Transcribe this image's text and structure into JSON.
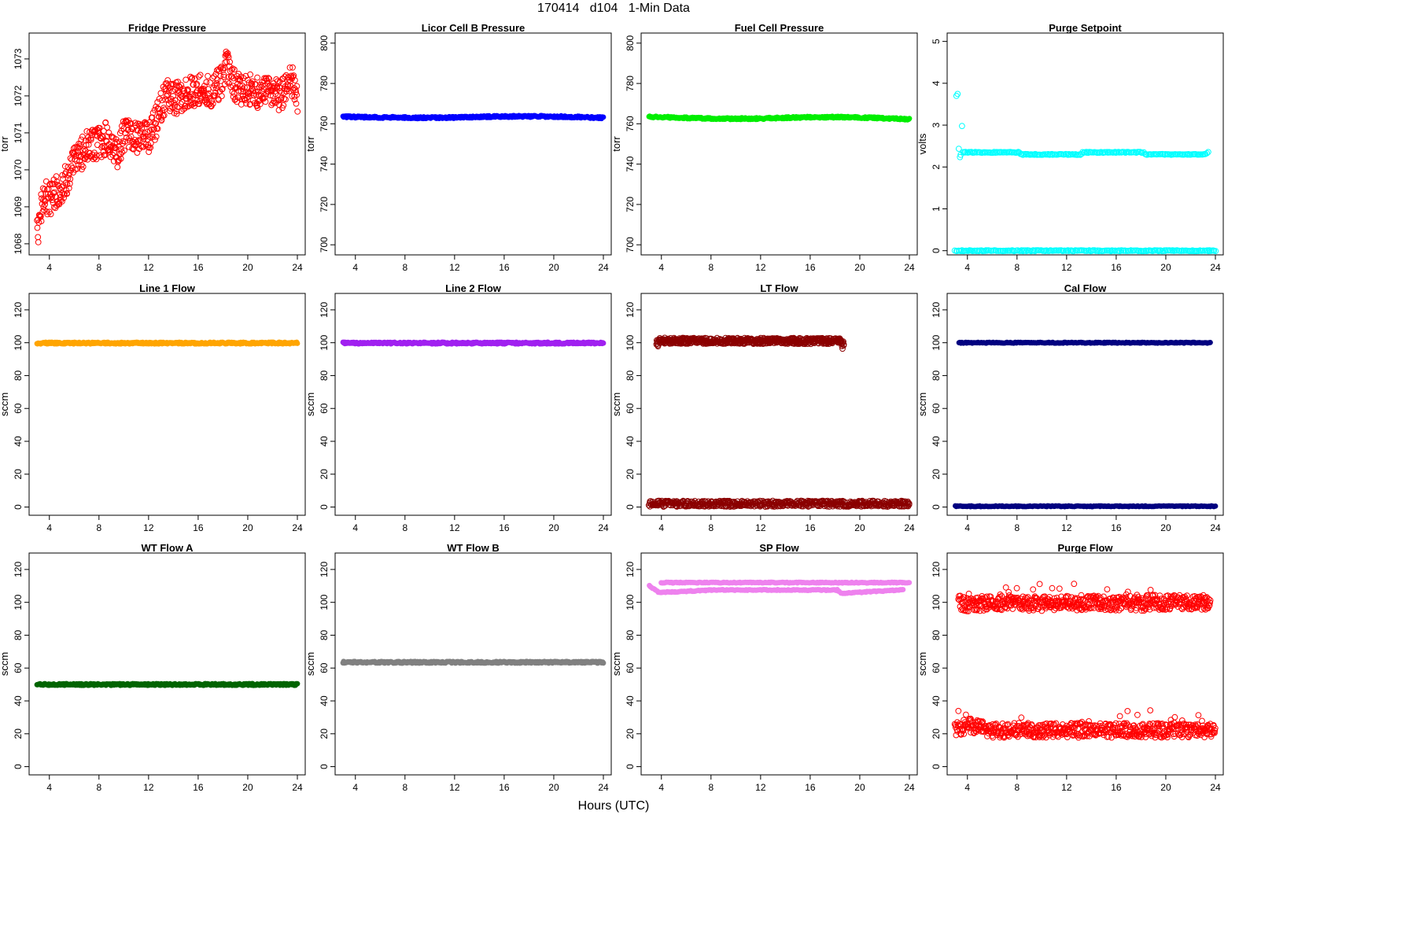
{
  "figure": {
    "title": "170414   d104   1-Min Data",
    "xlabel": "Hours (UTC)"
  },
  "chart_data": [
    {
      "type": "scatter",
      "title": "Fridge Pressure",
      "ylabel": "torr",
      "ylim": [
        1067.7,
        1073.7
      ],
      "yticks": [
        1068,
        1069,
        1070,
        1071,
        1072,
        1073
      ],
      "xlim": [
        3,
        24
      ],
      "xticks": [
        4,
        8,
        12,
        16,
        20,
        24
      ],
      "color": "#ff0000",
      "marker": "open-circle",
      "series": [
        {
          "x": [
            3,
            3.5,
            4,
            4.5,
            5,
            5.5,
            6,
            7,
            8,
            8.7,
            9,
            9.5,
            10,
            11,
            12,
            12.5,
            13,
            13.5,
            14,
            15,
            16,
            17,
            18,
            18.3,
            19,
            20,
            21,
            22,
            23,
            23.5,
            24
          ],
          "y": [
            1068.2,
            1069.3,
            1069.2,
            1069.4,
            1069.5,
            1069.8,
            1070.2,
            1070.6,
            1070.7,
            1070.9,
            1070.5,
            1070.4,
            1070.9,
            1070.9,
            1070.9,
            1071.2,
            1071.7,
            1072.0,
            1071.9,
            1072.1,
            1072.2,
            1072.1,
            1072.4,
            1072.8,
            1072.2,
            1072.2,
            1072.1,
            1072.0,
            1072.1,
            1072.5,
            1071.8
          ]
        }
      ]
    },
    {
      "type": "scatter",
      "title": "Licor Cell B Pressure",
      "ylabel": "torr",
      "ylim": [
        695,
        805
      ],
      "yticks": [
        700,
        720,
        740,
        760,
        780,
        800
      ],
      "xlim": [
        3,
        24
      ],
      "xticks": [
        4,
        8,
        12,
        16,
        20,
        24
      ],
      "color": "#0000ff",
      "marker": "filled-dense",
      "series": [
        {
          "x": [
            3,
            6,
            9,
            12,
            15,
            18,
            21,
            24
          ],
          "y": [
            763.5,
            763.2,
            763.0,
            763.1,
            763.6,
            763.7,
            763.5,
            763.0
          ]
        }
      ]
    },
    {
      "type": "scatter",
      "title": "Fuel Cell Pressure",
      "ylabel": "torr",
      "ylim": [
        695,
        805
      ],
      "yticks": [
        700,
        720,
        740,
        760,
        780,
        800
      ],
      "xlim": [
        3,
        24
      ],
      "xticks": [
        4,
        8,
        12,
        16,
        20,
        24
      ],
      "color": "#00ee00",
      "marker": "filled-dense",
      "series": [
        {
          "x": [
            3,
            6,
            9,
            12,
            15,
            18,
            21,
            24
          ],
          "y": [
            763.5,
            762.9,
            762.5,
            762.6,
            763.2,
            763.3,
            763.0,
            762.2
          ]
        }
      ]
    },
    {
      "type": "scatter",
      "title": "Purge Setpoint",
      "ylabel": "volts",
      "ylim": [
        -0.1,
        5.2
      ],
      "yticks": [
        0,
        1,
        2,
        3,
        4,
        5
      ],
      "xlim": [
        3,
        24
      ],
      "xticks": [
        4,
        8,
        12,
        16,
        20,
        24
      ],
      "color": "#00ffff",
      "marker": "open-circle",
      "series": [
        {
          "x": [
            3.1,
            3.2,
            3.3,
            3.4,
            3.5,
            3.5,
            3.6,
            8.2,
            8.3,
            13.2,
            13.3,
            18.2,
            18.3,
            23.2,
            23.4
          ],
          "y": [
            3.7,
            3.75,
            2.2,
            2.25,
            2.3,
            4.05,
            2.35,
            2.35,
            2.3,
            2.3,
            2.35,
            2.35,
            2.3,
            2.3,
            2.35
          ]
        },
        {
          "x": [
            3,
            24
          ],
          "y": [
            0,
            0
          ]
        }
      ]
    },
    {
      "type": "scatter",
      "title": "Line 1 Flow",
      "ylabel": "sccm",
      "ylim": [
        -5,
        130
      ],
      "yticks": [
        0,
        20,
        40,
        60,
        80,
        100,
        120
      ],
      "xlim": [
        3,
        24
      ],
      "xticks": [
        4,
        8,
        12,
        16,
        20,
        24
      ],
      "color": "#ffa500",
      "marker": "filled-dense",
      "series": [
        {
          "x": [
            3,
            24
          ],
          "y": [
            99.8,
            99.8
          ]
        }
      ]
    },
    {
      "type": "scatter",
      "title": "Line 2 Flow",
      "ylabel": "sccm",
      "ylim": [
        -5,
        130
      ],
      "yticks": [
        0,
        20,
        40,
        60,
        80,
        100,
        120
      ],
      "xlim": [
        3,
        24
      ],
      "xticks": [
        4,
        8,
        12,
        16,
        20,
        24
      ],
      "color": "#a020f0",
      "marker": "filled-dense",
      "series": [
        {
          "x": [
            3,
            24
          ],
          "y": [
            99.8,
            99.8
          ]
        }
      ]
    },
    {
      "type": "scatter",
      "title": "LT Flow",
      "ylabel": "sccm",
      "ylim": [
        -5,
        130
      ],
      "yticks": [
        0,
        20,
        40,
        60,
        80,
        100,
        120
      ],
      "xlim": [
        3,
        24
      ],
      "xticks": [
        4,
        8,
        12,
        16,
        20,
        24
      ],
      "color": "#8b0000",
      "marker": "open-circle",
      "series": [
        {
          "x": [
            3.6,
            3.7,
            3.8,
            18.5,
            18.6,
            18.7
          ],
          "y": [
            100.5,
            98.5,
            101.2,
            101.0,
            98.0,
            100.3
          ]
        },
        {
          "x": [
            3,
            24
          ],
          "y": [
            2,
            2
          ]
        }
      ]
    },
    {
      "type": "scatter",
      "title": "Cal Flow",
      "ylabel": "sccm",
      "ylim": [
        -5,
        130
      ],
      "yticks": [
        0,
        20,
        40,
        60,
        80,
        100,
        120
      ],
      "xlim": [
        3,
        24
      ],
      "xticks": [
        4,
        8,
        12,
        16,
        20,
        24
      ],
      "color": "#000080",
      "marker": "filled",
      "series": [
        {
          "x": [
            3.3,
            3.5,
            3.7,
            8.2,
            8.4,
            13.2,
            13.4,
            18.2,
            18.4,
            23.2,
            23.4,
            23.6
          ],
          "y": [
            100,
            100,
            100,
            100,
            100,
            100,
            100,
            100,
            100,
            100,
            100,
            100
          ]
        },
        {
          "x": [
            3,
            24
          ],
          "y": [
            0.5,
            0.5
          ]
        }
      ]
    },
    {
      "type": "scatter",
      "title": "WT Flow A",
      "ylabel": "sccm",
      "ylim": [
        -5,
        130
      ],
      "yticks": [
        0,
        20,
        40,
        60,
        80,
        100,
        120
      ],
      "xlim": [
        3,
        24
      ],
      "xticks": [
        4,
        8,
        12,
        16,
        20,
        24
      ],
      "color": "#006400",
      "marker": "filled-dense",
      "series": [
        {
          "x": [
            3,
            24
          ],
          "y": [
            50,
            50
          ]
        }
      ]
    },
    {
      "type": "scatter",
      "title": "WT Flow B",
      "ylabel": "sccm",
      "ylim": [
        -5,
        130
      ],
      "yticks": [
        0,
        20,
        40,
        60,
        80,
        100,
        120
      ],
      "xlim": [
        3,
        24
      ],
      "xticks": [
        4,
        8,
        12,
        16,
        20,
        24
      ],
      "color": "#808080",
      "marker": "filled-dense",
      "series": [
        {
          "x": [
            3,
            24
          ],
          "y": [
            63.5,
            63.5
          ]
        }
      ]
    },
    {
      "type": "scatter",
      "title": "SP Flow",
      "ylabel": "sccm",
      "ylim": [
        -5,
        130
      ],
      "yticks": [
        0,
        20,
        40,
        60,
        80,
        100,
        120
      ],
      "xlim": [
        3,
        24
      ],
      "xticks": [
        4,
        8,
        12,
        16,
        20,
        24
      ],
      "color": "#ee82ee",
      "marker": "filled",
      "series": [
        {
          "x": [
            3,
            3.5,
            3.8,
            8.2,
            8.4,
            13.2,
            13.4,
            18.2,
            18.5,
            23.2,
            23.5
          ],
          "y": [
            110,
            107.5,
            106,
            107.5,
            107.5,
            107.5,
            107.5,
            107.5,
            105.5,
            107.5,
            107.5
          ]
        },
        {
          "x": [
            4,
            24
          ],
          "y": [
            112,
            112
          ]
        }
      ]
    },
    {
      "type": "scatter",
      "title": "Purge Flow",
      "ylabel": "sccm",
      "ylim": [
        -5,
        130
      ],
      "yticks": [
        0,
        20,
        40,
        60,
        80,
        100,
        120
      ],
      "xlim": [
        3,
        24
      ],
      "xticks": [
        4,
        8,
        12,
        16,
        20,
        24
      ],
      "color": "#ff0000",
      "marker": "open-circle",
      "series": [
        {
          "x": [
            3.3,
            3.5,
            3.7,
            8.2,
            8.4,
            13.2,
            13.4,
            18.2,
            18.4,
            23.2,
            23.4,
            23.6
          ],
          "y": [
            99.5,
            100,
            99,
            100,
            99,
            99.5,
            100,
            99,
            100,
            100,
            99,
            100
          ]
        },
        {
          "x": [
            3,
            4,
            6,
            8,
            10,
            12,
            14,
            16,
            18,
            20,
            22,
            24
          ],
          "y": [
            22,
            25,
            22,
            22,
            22,
            22,
            22,
            22,
            22,
            22,
            22,
            22
          ]
        }
      ]
    }
  ]
}
